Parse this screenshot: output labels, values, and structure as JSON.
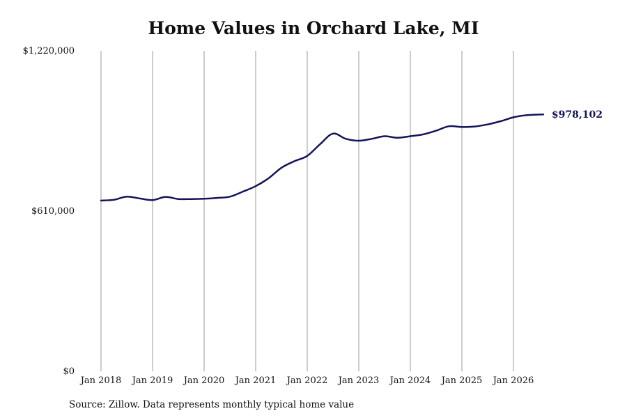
{
  "chart_data": {
    "type": "line",
    "title": "Home Values in Orchard Lake, MI",
    "xlabel": "",
    "ylabel": "",
    "ylim": [
      0,
      1220000
    ],
    "y_ticks": [
      {
        "value": 0,
        "label": "$0"
      },
      {
        "value": 610000,
        "label": "$610,000"
      },
      {
        "value": 1220000,
        "label": "$1,220,000"
      }
    ],
    "x_ticks": [
      {
        "value": 2018,
        "label": "Jan 2018"
      },
      {
        "value": 2019,
        "label": "Jan 2019"
      },
      {
        "value": 2020,
        "label": "Jan 2020"
      },
      {
        "value": 2021,
        "label": "Jan 2021"
      },
      {
        "value": 2022,
        "label": "Jan 2022"
      },
      {
        "value": 2023,
        "label": "Jan 2023"
      },
      {
        "value": 2024,
        "label": "Jan 2024"
      },
      {
        "value": 2025,
        "label": "Jan 2025"
      },
      {
        "value": 2026,
        "label": "Jan 2026"
      }
    ],
    "grid": {
      "vertical": true,
      "horizontal": false
    },
    "line_color": "#14145a",
    "grid_color": "#999999",
    "series": [
      {
        "x": [
          2018.0,
          2018.25,
          2018.5,
          2018.75,
          2019.0,
          2019.25,
          2019.5,
          2019.75,
          2020.0,
          2020.25,
          2020.5,
          2020.75,
          2021.0,
          2021.25,
          2021.5,
          2021.75,
          2022.0,
          2022.25,
          2022.5,
          2022.75,
          2023.0,
          2023.25,
          2023.5,
          2023.75,
          2024.0,
          2024.25,
          2024.5,
          2024.75,
          2025.0,
          2025.25,
          2025.5,
          2025.75,
          2026.0,
          2026.25,
          2026.58
        ],
        "values": [
          650000,
          653000,
          665000,
          658000,
          652000,
          664000,
          656000,
          656000,
          657000,
          660000,
          665000,
          684000,
          705000,
          735000,
          775000,
          800000,
          820000,
          865000,
          905000,
          885000,
          878000,
          885000,
          895000,
          889000,
          895000,
          902000,
          916000,
          933000,
          930000,
          932000,
          940000,
          952000,
          967000,
          975000,
          978102
        ]
      }
    ],
    "end_label": "$978,102",
    "source": "Source: Zillow. Data represents monthly typical home value"
  }
}
